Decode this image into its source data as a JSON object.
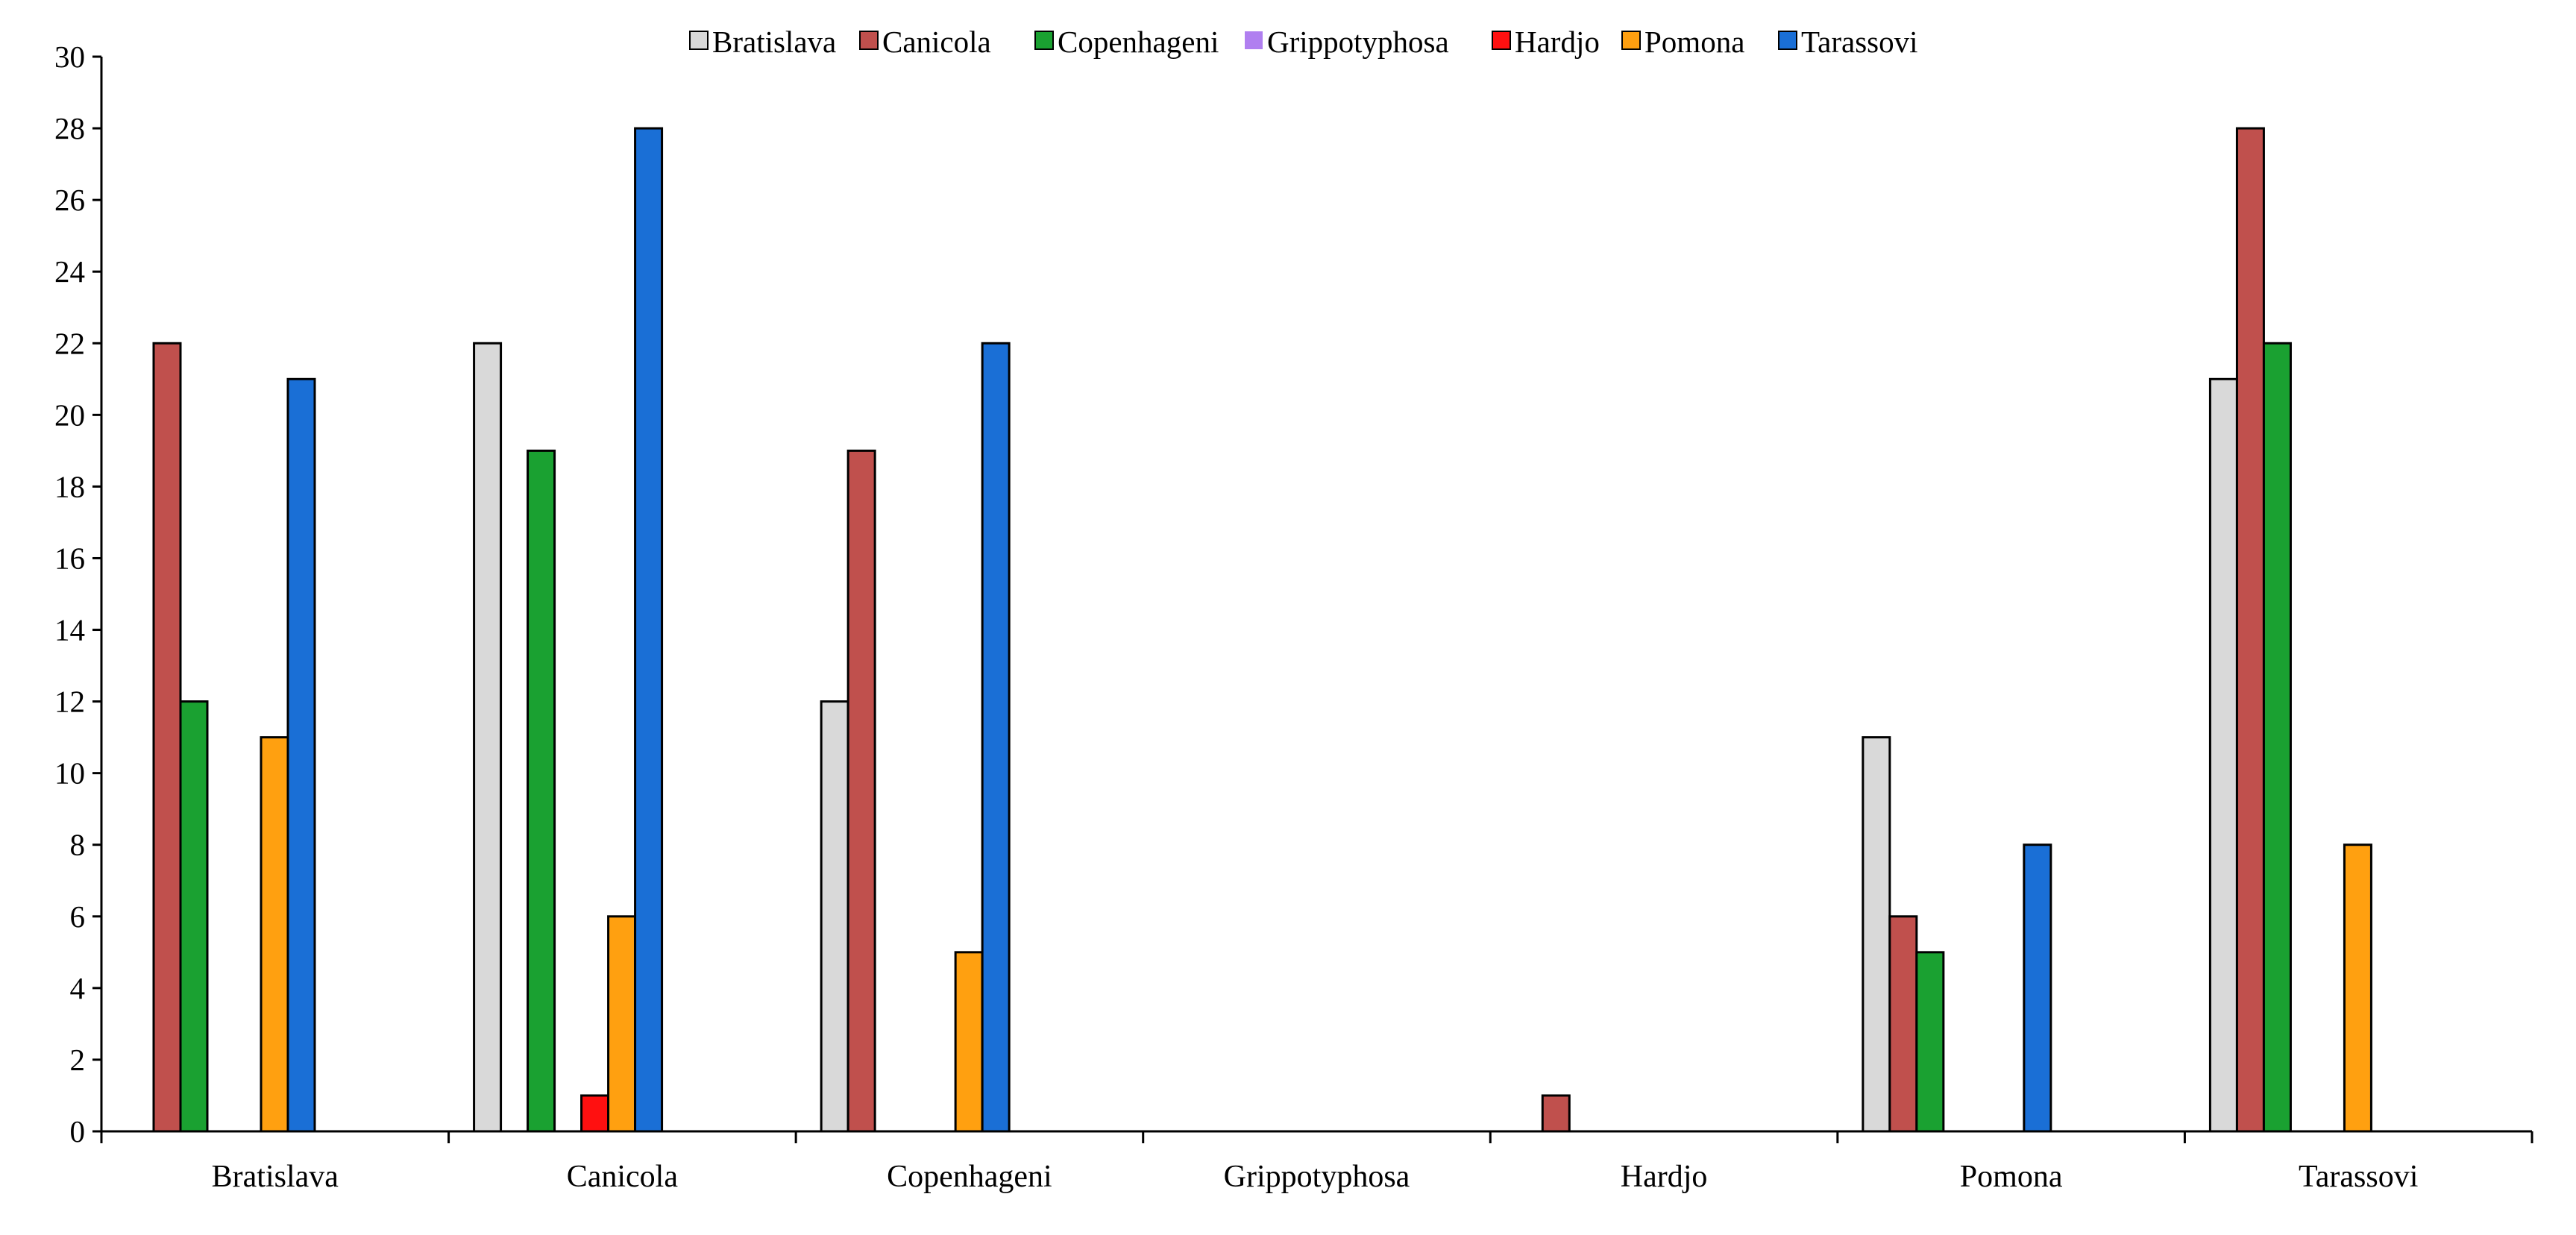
{
  "chart_data": {
    "type": "bar",
    "categories": [
      "Bratislava",
      "Canicola",
      "Copenhageni",
      "Grippotyphosa",
      "Hardjo",
      "Pomona",
      "Tarassovi"
    ],
    "series": [
      {
        "name": "Bratislava",
        "color": "#d9d9d9",
        "values": [
          0,
          22,
          12,
          0,
          0,
          11,
          21
        ]
      },
      {
        "name": "Canicola",
        "color": "#c0504d",
        "values": [
          22,
          0,
          19,
          0,
          1,
          6,
          28
        ]
      },
      {
        "name": "Copenhageni",
        "color": "#1aa131",
        "values": [
          12,
          19,
          0,
          0,
          0,
          5,
          22
        ]
      },
      {
        "name": "Grippotyphosa",
        "color": "#b07ff0",
        "values": [
          0,
          0,
          0,
          0,
          0,
          0,
          0
        ]
      },
      {
        "name": "Hardjo",
        "color": "#ff1010",
        "values": [
          0,
          1,
          0,
          0,
          0,
          0,
          0
        ]
      },
      {
        "name": "Pomona",
        "color": "#ffa010",
        "values": [
          11,
          6,
          5,
          0,
          0,
          0,
          8
        ]
      },
      {
        "name": "Tarassovi",
        "color": "#1a6fd6",
        "values": [
          21,
          28,
          22,
          0,
          0,
          8,
          0
        ]
      }
    ],
    "ylim": [
      0,
      30
    ],
    "yticks": [
      0,
      2,
      4,
      6,
      8,
      10,
      12,
      14,
      16,
      18,
      20,
      22,
      24,
      26,
      28,
      30
    ],
    "title": "",
    "xlabel": "",
    "ylabel": "",
    "legend_position": "top-center",
    "grid": false
  }
}
